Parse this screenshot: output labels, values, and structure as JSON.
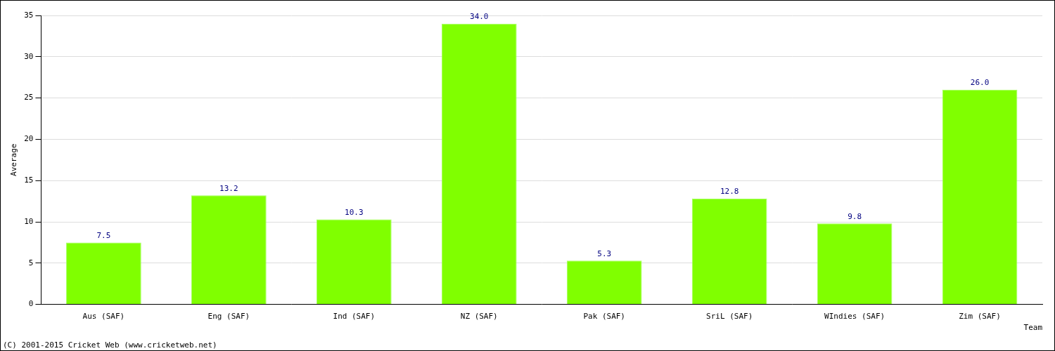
{
  "chart_data": {
    "type": "bar",
    "categories": [
      "Aus (SAF)",
      "Eng (SAF)",
      "Ind (SAF)",
      "NZ (SAF)",
      "Pak (SAF)",
      "SriL (SAF)",
      "WIndies (SAF)",
      "Zim (SAF)"
    ],
    "values": [
      7.5,
      13.2,
      10.3,
      34.0,
      5.3,
      12.8,
      9.8,
      26.0
    ],
    "value_labels": [
      "7.5",
      "13.2",
      "10.3",
      "34.0",
      "5.3",
      "12.8",
      "9.8",
      "26.0"
    ],
    "data_labels": true,
    "color": "#80ff00",
    "x_label": "Team",
    "y_label": "Average",
    "annotations": [
      "(C) 2001-2015 Cricket Web (www.cricketweb.net)"
    ],
    "ylim": [
      0,
      35
    ],
    "yticks": [
      0,
      5,
      10,
      15,
      20,
      25,
      30,
      35
    ],
    "grid": true
  }
}
